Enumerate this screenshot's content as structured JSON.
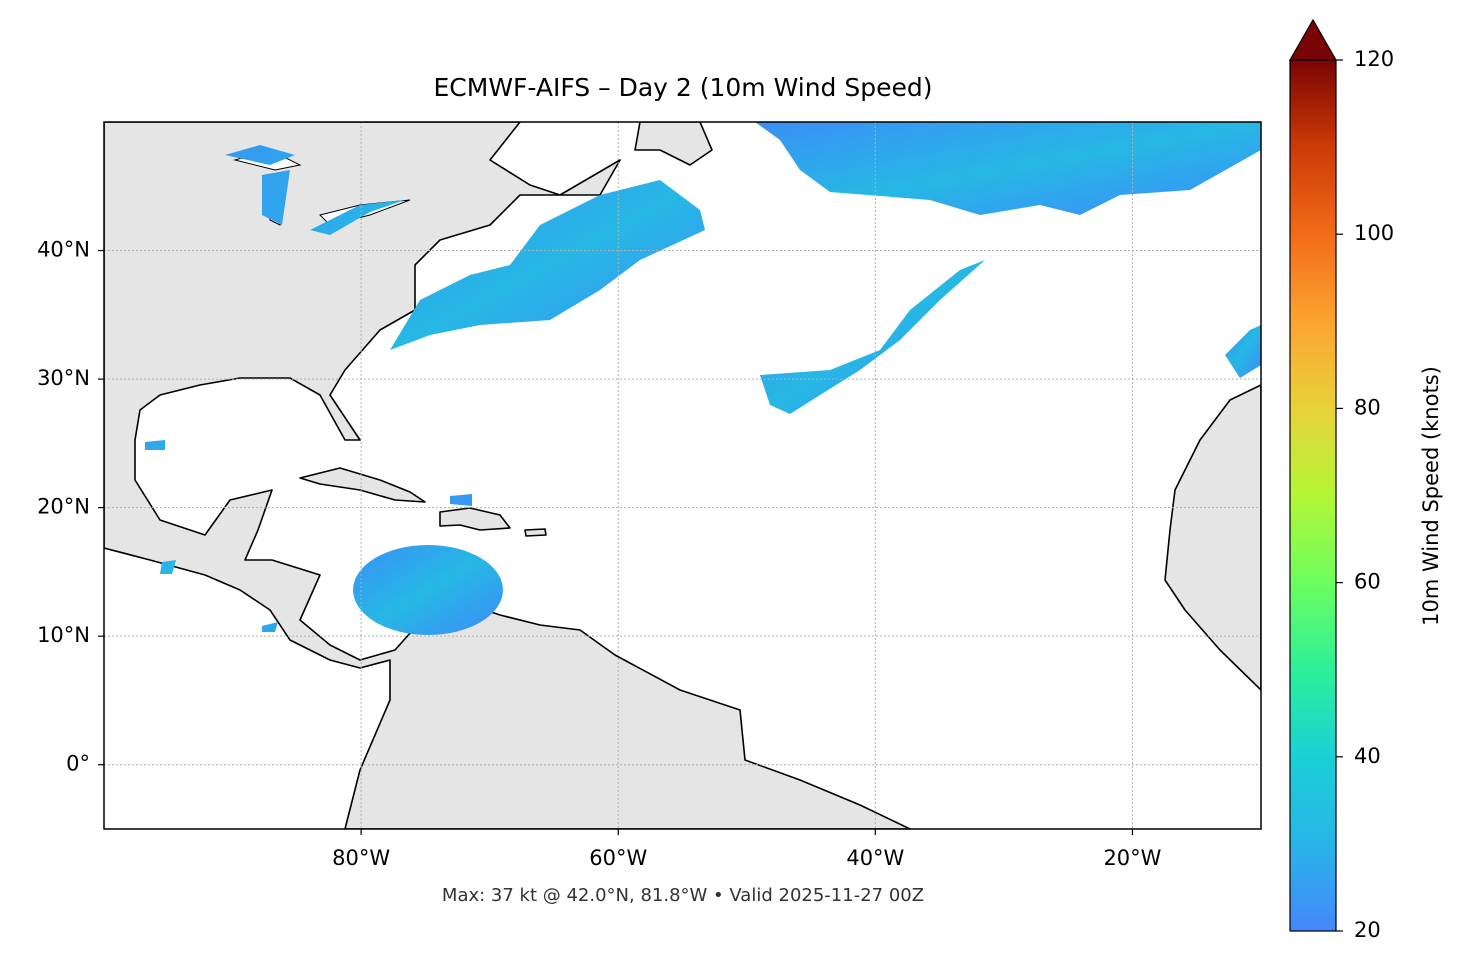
{
  "chart_data": {
    "type": "map",
    "title": "ECMWF-AIFS – Day 2 (10m Wind Speed)",
    "footer": "Max: 37 kt @ 42.0°N, 81.8°W • Valid 2025-11-27 00Z",
    "xlim": [
      -100,
      -10
    ],
    "ylim": [
      -5,
      50
    ],
    "xticks": [
      {
        "value": -80,
        "label": "80°W"
      },
      {
        "value": -60,
        "label": "60°W"
      },
      {
        "value": -40,
        "label": "40°W"
      },
      {
        "value": -20,
        "label": "20°W"
      }
    ],
    "yticks": [
      {
        "value": 0,
        "label": "0°"
      },
      {
        "value": 10,
        "label": "10°N"
      },
      {
        "value": 20,
        "label": "20°N"
      },
      {
        "value": 30,
        "label": "30°N"
      },
      {
        "value": 40,
        "label": "40°N"
      }
    ],
    "grid": true,
    "colorbar": {
      "label": "10m Wind Speed (knots)",
      "lim": [
        20,
        120
      ],
      "ticks": [
        20,
        40,
        60,
        80,
        100,
        120
      ]
    }
  }
}
